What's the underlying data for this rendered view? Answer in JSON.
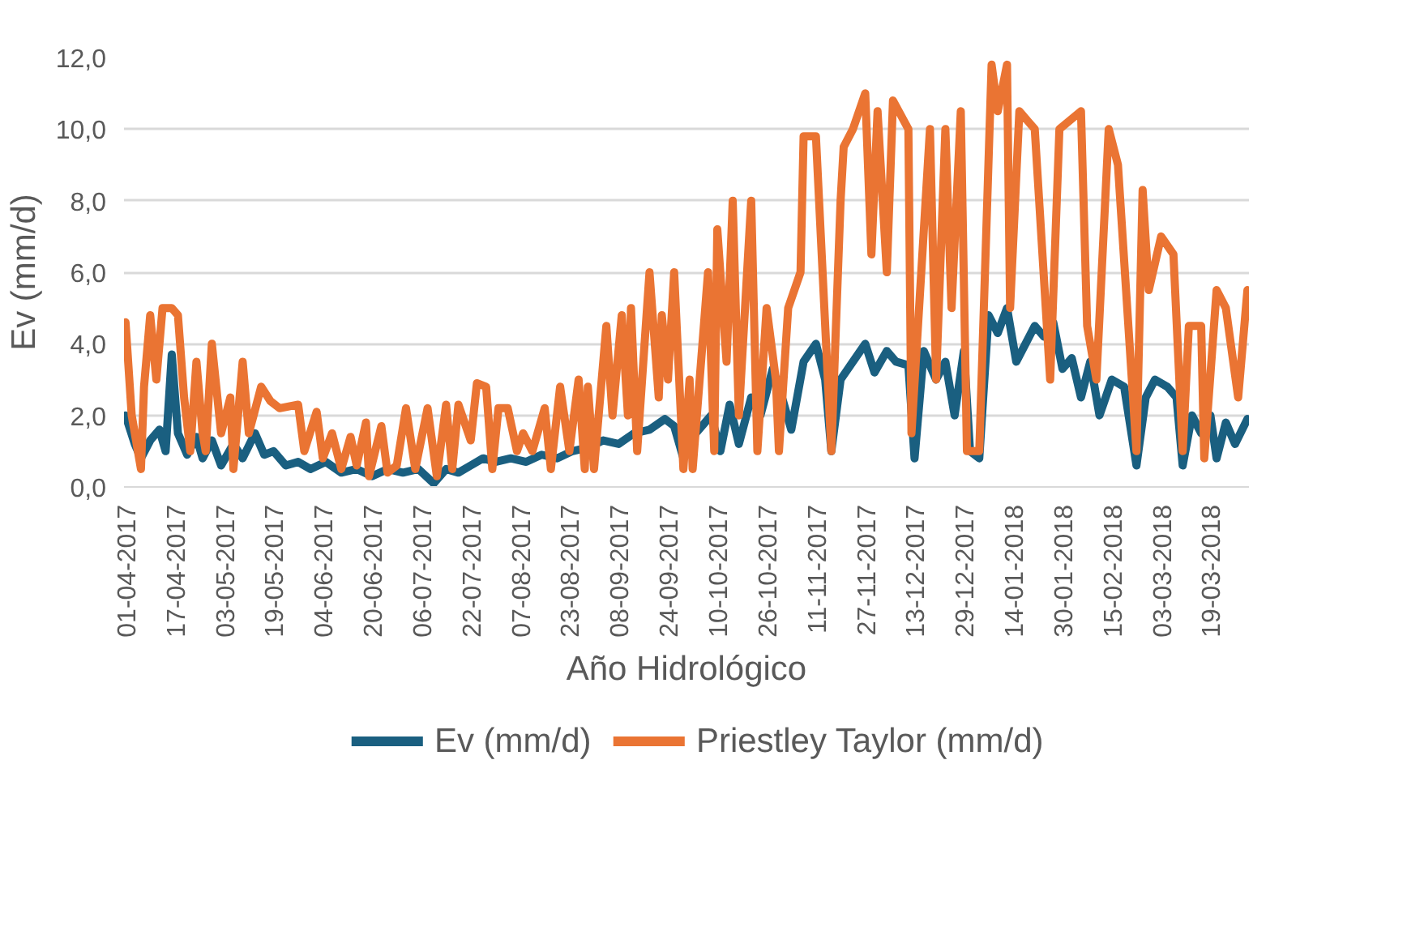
{
  "chart_data": {
    "type": "line",
    "xlabel": "Año Hidrológico",
    "ylabel": "Ev (mm/d)",
    "xlim": [
      "2017-04-01",
      "2018-03-31"
    ],
    "xticks": [
      {
        "value": "2017-04-01",
        "label": "01-04-2017"
      },
      {
        "value": "2017-04-17",
        "label": "17-04-2017"
      },
      {
        "value": "2017-05-03",
        "label": "03-05-2017"
      },
      {
        "value": "2017-05-19",
        "label": "19-05-2017"
      },
      {
        "value": "2017-06-04",
        "label": "04-06-2017"
      },
      {
        "value": "2017-06-20",
        "label": "20-06-2017"
      },
      {
        "value": "2017-07-06",
        "label": "06-07-2017"
      },
      {
        "value": "2017-07-22",
        "label": "22-07-2017"
      },
      {
        "value": "2017-08-07",
        "label": "07-08-2017"
      },
      {
        "value": "2017-08-23",
        "label": "23-08-2017"
      },
      {
        "value": "2017-09-08",
        "label": "08-09-2017"
      },
      {
        "value": "2017-09-24",
        "label": "24-09-2017"
      },
      {
        "value": "2017-10-10",
        "label": "10-10-2017"
      },
      {
        "value": "2017-10-26",
        "label": "26-10-2017"
      },
      {
        "value": "2017-11-11",
        "label": "11-11-2017"
      },
      {
        "value": "2017-11-27",
        "label": "27-11-2017"
      },
      {
        "value": "2017-12-13",
        "label": "13-12-2017"
      },
      {
        "value": "2017-12-29",
        "label": "29-12-2017"
      },
      {
        "value": "2018-01-14",
        "label": "14-01-2018"
      },
      {
        "value": "2018-01-30",
        "label": "30-01-2018"
      },
      {
        "value": "2018-02-15",
        "label": "15-02-2018"
      },
      {
        "value": "2018-03-03",
        "label": "03-03-2018"
      },
      {
        "value": "2018-03-19",
        "label": "19-03-2018"
      }
    ],
    "ylim": [
      0,
      12
    ],
    "yticks": [
      {
        "value": 0,
        "label": "0,0"
      },
      {
        "value": 2,
        "label": "2,0"
      },
      {
        "value": 4,
        "label": "4,0"
      },
      {
        "value": 6,
        "label": "6,0"
      },
      {
        "value": 8,
        "label": "8,0"
      },
      {
        "value": 10,
        "label": "10,0"
      },
      {
        "value": 12,
        "label": "12,0"
      }
    ],
    "grid": "y",
    "legend": "bottom",
    "line_style": "solid",
    "series": [
      {
        "name": "Ev (mm/d)",
        "color": "#1a5f80",
        "x": [
          "2017-04-01",
          "2017-04-04",
          "2017-04-06",
          "2017-04-09",
          "2017-04-12",
          "2017-04-14",
          "2017-04-16",
          "2017-04-18",
          "2017-04-21",
          "2017-04-24",
          "2017-04-26",
          "2017-04-29",
          "2017-05-02",
          "2017-05-06",
          "2017-05-09",
          "2017-05-13",
          "2017-05-16",
          "2017-05-19",
          "2017-05-23",
          "2017-05-27",
          "2017-05-31",
          "2017-06-05",
          "2017-06-10",
          "2017-06-15",
          "2017-06-20",
          "2017-06-25",
          "2017-06-30",
          "2017-07-05",
          "2017-07-10",
          "2017-07-14",
          "2017-07-18",
          "2017-07-22",
          "2017-07-26",
          "2017-07-30",
          "2017-08-04",
          "2017-08-09",
          "2017-08-14",
          "2017-08-19",
          "2017-08-24",
          "2017-08-29",
          "2017-09-03",
          "2017-09-08",
          "2017-09-13",
          "2017-09-18",
          "2017-09-23",
          "2017-09-26",
          "2017-09-29",
          "2017-10-03",
          "2017-10-08",
          "2017-10-11",
          "2017-10-14",
          "2017-10-17",
          "2017-10-21",
          "2017-10-24",
          "2017-10-28",
          "2017-10-31",
          "2017-11-03",
          "2017-11-07",
          "2017-11-11",
          "2017-11-14",
          "2017-11-16",
          "2017-11-19",
          "2017-11-23",
          "2017-11-27",
          "2017-11-30",
          "2017-12-04",
          "2017-12-07",
          "2017-12-11",
          "2017-12-13",
          "2017-12-16",
          "2017-12-20",
          "2017-12-23",
          "2017-12-26",
          "2017-12-29",
          "2017-12-31",
          "2018-01-03",
          "2018-01-06",
          "2018-01-09",
          "2018-01-12",
          "2018-01-15",
          "2018-01-18",
          "2018-01-21",
          "2018-01-24",
          "2018-01-27",
          "2018-01-30",
          "2018-02-02",
          "2018-02-05",
          "2018-02-08",
          "2018-02-11",
          "2018-02-15",
          "2018-02-19",
          "2018-02-23",
          "2018-02-26",
          "2018-03-01",
          "2018-03-05",
          "2018-03-08",
          "2018-03-10",
          "2018-03-13",
          "2018-03-16",
          "2018-03-19",
          "2018-03-21",
          "2018-03-24",
          "2018-03-27",
          "2018-03-31"
        ],
        "values": [
          2.0,
          1.2,
          0.8,
          1.3,
          1.6,
          1.0,
          3.7,
          1.5,
          0.9,
          1.4,
          0.8,
          1.3,
          0.6,
          1.2,
          0.8,
          1.5,
          0.9,
          1.0,
          0.6,
          0.7,
          0.5,
          0.7,
          0.4,
          0.5,
          0.3,
          0.5,
          0.4,
          0.5,
          0.1,
          0.5,
          0.4,
          0.6,
          0.8,
          0.7,
          0.8,
          0.7,
          0.9,
          0.8,
          1.0,
          1.1,
          1.3,
          1.2,
          1.5,
          1.6,
          1.9,
          1.7,
          0.8,
          1.5,
          2.0,
          1.0,
          2.3,
          1.2,
          2.5,
          2.0,
          3.3,
          2.5,
          1.6,
          3.5,
          4.0,
          3.0,
          1.0,
          3.0,
          3.5,
          4.0,
          3.2,
          3.8,
          3.5,
          3.4,
          0.8,
          3.8,
          3.0,
          3.5,
          2.0,
          3.8,
          1.0,
          0.8,
          4.8,
          4.3,
          5.0,
          3.5,
          4.0,
          4.5,
          4.2,
          4.6,
          3.3,
          3.6,
          2.5,
          3.5,
          2.0,
          3.0,
          2.8,
          0.6,
          2.5,
          3.0,
          2.8,
          2.5,
          0.6,
          2.0,
          1.5,
          2.0,
          0.8,
          1.8,
          1.2,
          1.9
        ]
      },
      {
        "name": "Priestley Taylor (mm/d)",
        "color": "#ea7433",
        "x": [
          "2017-04-01",
          "2017-04-03",
          "2017-04-06",
          "2017-04-07",
          "2017-04-09",
          "2017-04-11",
          "2017-04-13",
          "2017-04-16",
          "2017-04-18",
          "2017-04-20",
          "2017-04-22",
          "2017-04-24",
          "2017-04-26",
          "2017-04-27",
          "2017-04-29",
          "2017-05-02",
          "2017-05-05",
          "2017-05-06",
          "2017-05-09",
          "2017-05-11",
          "2017-05-15",
          "2017-05-18",
          "2017-05-21",
          "2017-05-27",
          "2017-05-29",
          "2017-06-02",
          "2017-06-04",
          "2017-06-07",
          "2017-06-10",
          "2017-06-13",
          "2017-06-15",
          "2017-06-18",
          "2017-06-19",
          "2017-06-23",
          "2017-06-25",
          "2017-06-28",
          "2017-07-01",
          "2017-07-04",
          "2017-07-08",
          "2017-07-11",
          "2017-07-14",
          "2017-07-16",
          "2017-07-18",
          "2017-07-22",
          "2017-07-24",
          "2017-07-27",
          "2017-07-29",
          "2017-07-31",
          "2017-08-03",
          "2017-08-06",
          "2017-08-08",
          "2017-08-11",
          "2017-08-15",
          "2017-08-17",
          "2017-08-20",
          "2017-08-23",
          "2017-08-26",
          "2017-08-28",
          "2017-08-29",
          "2017-08-31",
          "2017-09-04",
          "2017-09-06",
          "2017-09-09",
          "2017-09-11",
          "2017-09-12",
          "2017-09-14",
          "2017-09-18",
          "2017-09-21",
          "2017-09-22",
          "2017-09-24",
          "2017-09-26",
          "2017-09-29",
          "2017-10-01",
          "2017-10-02",
          "2017-10-07",
          "2017-10-09",
          "2017-10-10",
          "2017-10-13",
          "2017-10-15",
          "2017-10-17",
          "2017-10-21",
          "2017-10-23",
          "2017-10-26",
          "2017-10-29",
          "2017-10-30",
          "2017-11-02",
          "2017-11-06",
          "2017-11-07",
          "2017-11-11",
          "2017-11-16",
          "2017-11-19",
          "2017-11-20",
          "2017-11-23",
          "2017-11-27",
          "2017-11-29",
          "2017-12-01",
          "2017-12-04",
          "2017-12-06",
          "2017-12-11",
          "2017-12-12",
          "2017-12-18",
          "2017-12-20",
          "2017-12-23",
          "2017-12-25",
          "2017-12-28",
          "2017-12-30",
          "2018-01-03",
          "2018-01-07",
          "2018-01-09",
          "2018-01-12",
          "2018-01-13",
          "2018-01-16",
          "2018-01-21",
          "2018-01-26",
          "2018-01-29",
          "2018-02-05",
          "2018-02-07",
          "2018-02-10",
          "2018-02-14",
          "2018-02-17",
          "2018-02-23",
          "2018-02-25",
          "2018-02-27",
          "2018-03-03",
          "2018-03-07",
          "2018-03-10",
          "2018-03-12",
          "2018-03-16",
          "2018-03-17",
          "2018-03-21",
          "2018-03-24",
          "2018-03-28",
          "2018-03-31"
        ],
        "values": [
          4.6,
          2.0,
          0.5,
          2.8,
          4.8,
          3.0,
          5.0,
          5.0,
          4.8,
          2.5,
          1.0,
          3.5,
          1.5,
          1.0,
          4.0,
          1.5,
          2.5,
          0.5,
          3.5,
          1.5,
          2.8,
          2.4,
          2.2,
          2.3,
          1.0,
          2.1,
          0.8,
          1.5,
          0.5,
          1.4,
          0.6,
          1.8,
          0.3,
          1.7,
          0.4,
          0.6,
          2.2,
          0.5,
          2.2,
          0.3,
          2.3,
          0.5,
          2.3,
          1.3,
          2.9,
          2.8,
          0.5,
          2.2,
          2.2,
          1.0,
          1.5,
          1.0,
          2.2,
          0.5,
          2.8,
          1.0,
          3.0,
          0.5,
          2.8,
          0.5,
          4.5,
          2.0,
          4.8,
          2.0,
          5.0,
          1.0,
          6.0,
          2.5,
          4.8,
          3.0,
          6.0,
          0.5,
          3.0,
          0.5,
          6.0,
          1.0,
          7.2,
          3.5,
          8.0,
          2.0,
          8.0,
          1.0,
          5.0,
          3.0,
          1.0,
          5.0,
          6.0,
          9.8,
          9.8,
          1.0,
          8.0,
          9.5,
          10.0,
          11.0,
          6.5,
          10.5,
          6.0,
          10.8,
          10.0,
          1.5,
          10.0,
          3.0,
          10.0,
          5.0,
          10.5,
          1.0,
          1.0,
          11.8,
          10.5,
          11.8,
          5.0,
          10.5,
          10.0,
          3.0,
          10.0,
          10.5,
          4.5,
          3.0,
          10.0,
          9.0,
          1.0,
          8.3,
          5.5,
          7.0,
          6.5,
          1.0,
          4.5,
          4.5,
          0.8,
          5.5,
          5.0,
          2.5,
          5.5
        ]
      }
    ]
  }
}
